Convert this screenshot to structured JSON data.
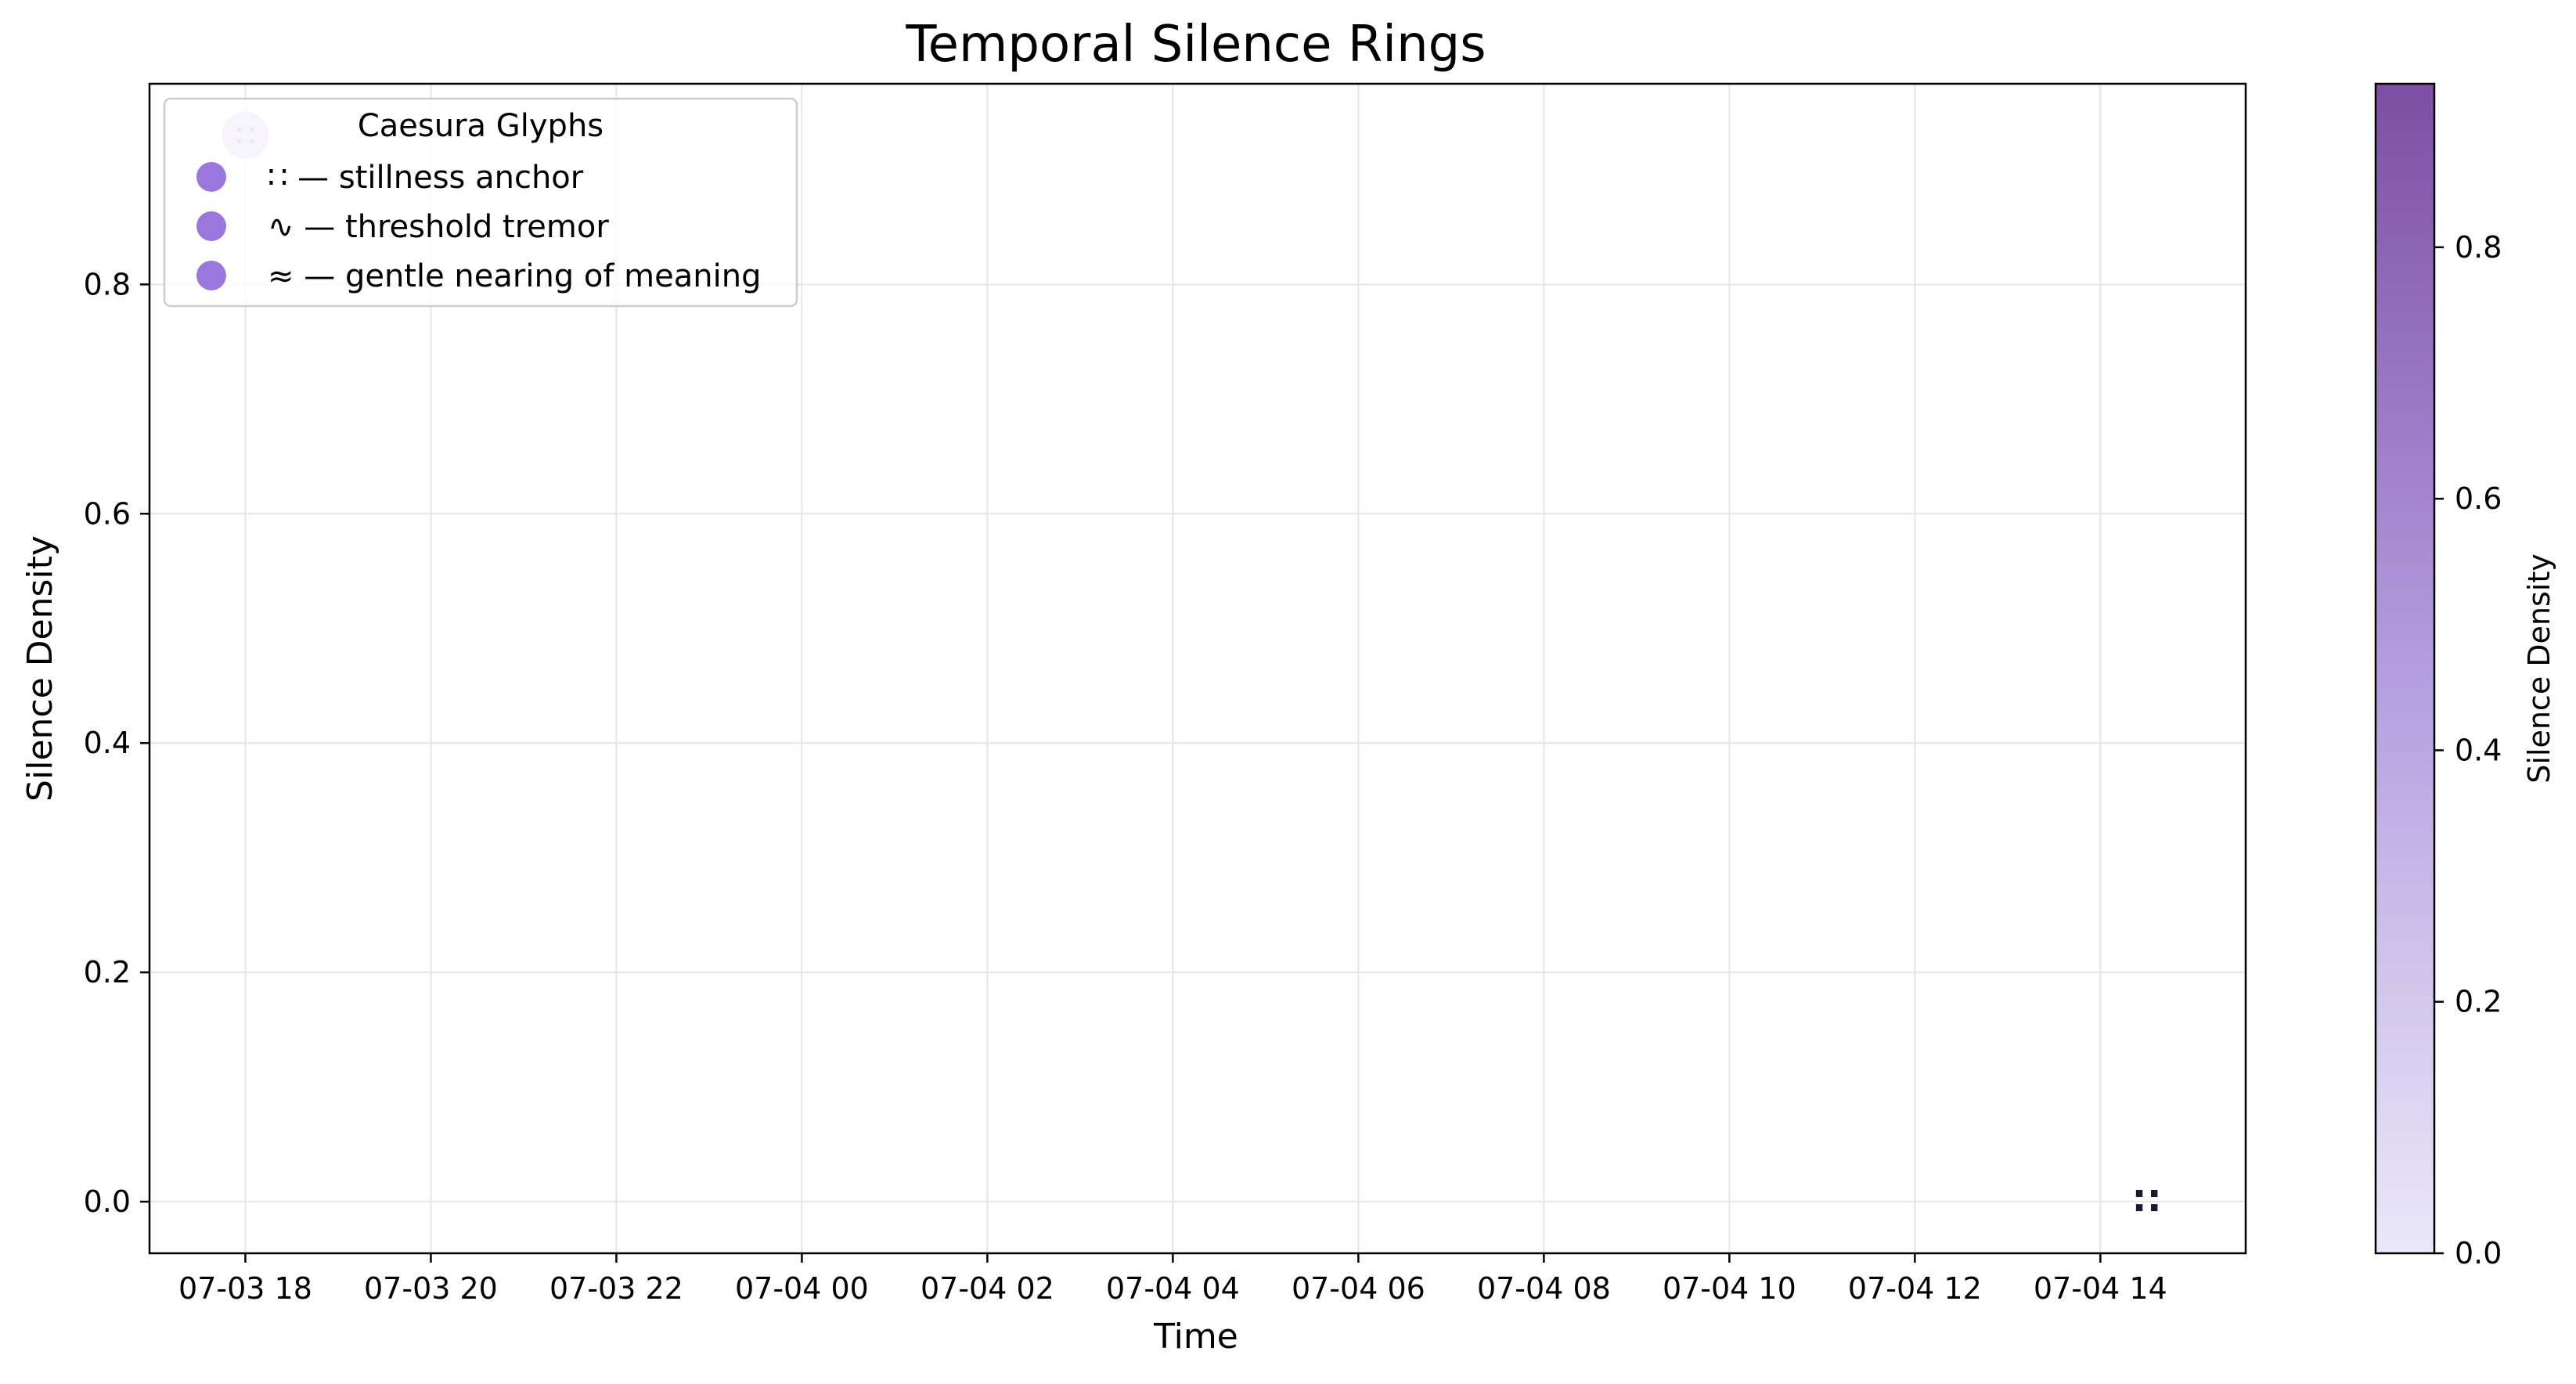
{
  "chart_data": {
    "type": "scatter",
    "title": "Temporal Silence Rings",
    "xlabel": "Time",
    "ylabel": "Silence Density",
    "x_ticks": [
      "07-03 18",
      "07-03 20",
      "07-03 22",
      "07-04 00",
      "07-04 02",
      "07-04 04",
      "07-04 06",
      "07-04 08",
      "07-04 10",
      "07-04 12",
      "07-04 14"
    ],
    "y_ticks": [
      0.0,
      0.2,
      0.4,
      0.6,
      0.8
    ],
    "xlim": [
      "2024-07-03 16:58",
      "2024-07-04 15:34"
    ],
    "ylim": [
      -0.045,
      0.975
    ],
    "grid": true,
    "legend": {
      "title": "Caesura Glyphs",
      "placement": "upper-left",
      "entries": [
        "∷ — stillness anchor",
        "∿ — threshold tremor",
        "≈ — gentle nearing of meaning"
      ],
      "marker_color": "#9370db"
    },
    "colorbar": {
      "label": "Silence Density",
      "range": [
        0.0,
        0.93
      ],
      "ticks": [
        0.0,
        0.2,
        0.4,
        0.6,
        0.8
      ],
      "colors": [
        "#ebe8f8",
        "#b39ddf",
        "#7d4ea3"
      ]
    },
    "points": [
      {
        "time": "2024-07-03 18:00",
        "value": 0.93,
        "glyph": "∷",
        "density": 0.25
      },
      {
        "time": "2024-07-04 14:30",
        "value": 0.0,
        "glyph": "∷",
        "density": 0.0
      }
    ]
  }
}
